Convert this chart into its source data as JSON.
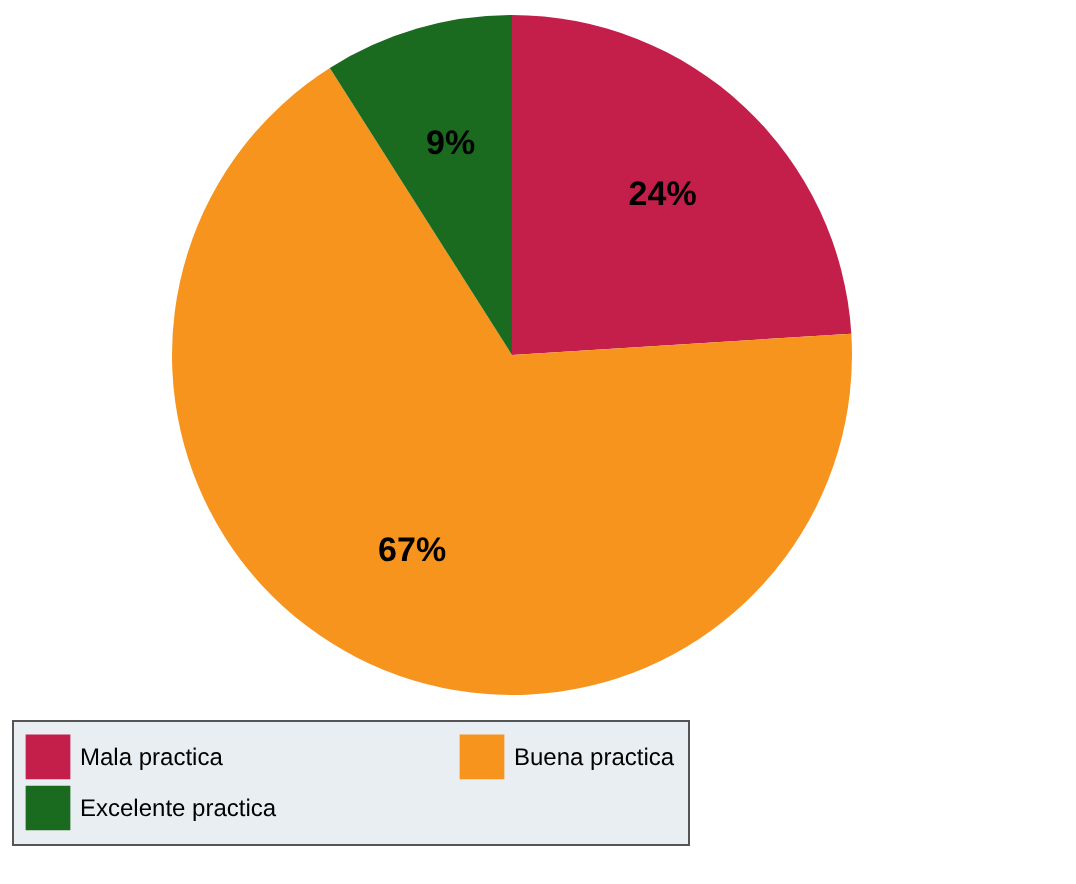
{
  "chart_data": {
    "type": "pie",
    "categories": [
      "Mala practica",
      "Buena practica",
      "Excelente practica"
    ],
    "values": [
      24,
      67,
      9
    ],
    "colors": [
      "#c41e4a",
      "#f7941d",
      "#1a6b1f"
    ],
    "value_labels": [
      "24%",
      "67%",
      "9%"
    ],
    "legend": "bottom"
  }
}
